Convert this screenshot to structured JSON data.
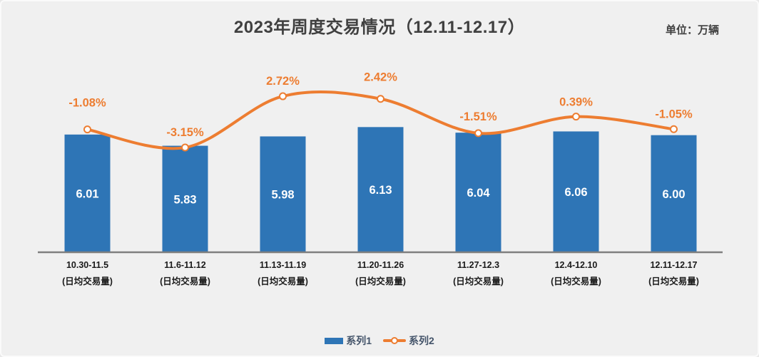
{
  "chart": {
    "title": "2023年周度交易情况（12.11-12.17）",
    "unit": "单位：万辆"
  },
  "legend": {
    "series1_label": "系列1",
    "series2_label": "系列2"
  },
  "colors": {
    "bar": "#2E75B6",
    "line": "#ED7D31",
    "marker_fill": "#FFFFFF",
    "bar_value_label": "#FFFFFF",
    "pct_label": "#ED7D31",
    "axis_line": "#7F7F7F",
    "title_text": "#404040",
    "x_label": "#1A1A1A",
    "legend_text": "#44546A",
    "background": "#F0F0F0"
  },
  "chart_data": {
    "type": "combo",
    "title": "2023年周度交易情况（12.11-12.17）",
    "unit_label": "单位：万辆",
    "categories": [
      "10.30-11.5",
      "11.6-11.12",
      "11.13-11.19",
      "11.20-11.26",
      "11.27-12.3",
      "12.4-12.10",
      "12.11-12.17"
    ],
    "category_sublabels": [
      "(日均交易量)",
      "(日均交易量)",
      "(日均交易量)",
      "(日均交易量)",
      "(日均交易量)",
      "(日均交易量)",
      "(日均交易量)"
    ],
    "series": [
      {
        "name": "系列1",
        "type": "bar",
        "axis": "primary",
        "values": [
          6.01,
          5.83,
          5.98,
          6.13,
          6.04,
          6.06,
          6.0
        ],
        "labels": [
          "6.01",
          "5.83",
          "5.98",
          "6.13",
          "6.04",
          "6.06",
          "6.00"
        ]
      },
      {
        "name": "系列2",
        "type": "line",
        "axis": "secondary",
        "smooth": true,
        "values": [
          -1.08,
          -3.15,
          2.72,
          2.42,
          -1.51,
          0.39,
          -1.05
        ],
        "labels": [
          "-1.08%",
          "-3.15%",
          "2.72%",
          "2.42%",
          "-1.51%",
          "0.39%",
          "-1.05%"
        ]
      }
    ],
    "primary_ylim": [
      4.12,
      7.35
    ],
    "secondary_ylim": [
      -15.1,
      7.9
    ],
    "grid": false,
    "y_axis_ticks_visible": false,
    "data_labels": true,
    "legend_position": "bottom"
  }
}
